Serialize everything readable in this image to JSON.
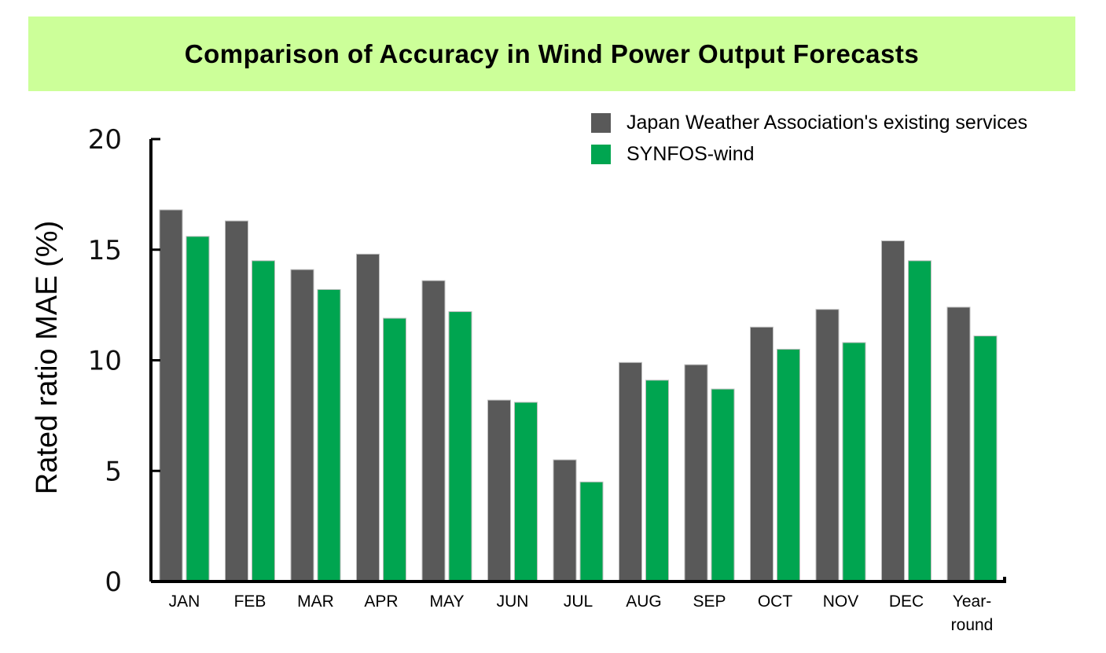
{
  "chart_data": {
    "type": "bar",
    "title": "Comparison of Accuracy in Wind Power Output Forecasts",
    "xlabel": "",
    "ylabel": "Rated ratio MAE (%)",
    "ylim": [
      0,
      20
    ],
    "yticks": [
      "0",
      "5",
      "10",
      "15",
      "20"
    ],
    "categories": [
      "JAN",
      "FEB",
      "MAR",
      "APR",
      "MAY",
      "JUN",
      "JUL",
      "AUG",
      "SEP",
      "OCT",
      "NOV",
      "DEC",
      "Year-round"
    ],
    "series": [
      {
        "name": "Japan Weather Association's existing services",
        "color": "#595959",
        "values": [
          16.8,
          16.3,
          14.1,
          14.8,
          13.6,
          8.2,
          5.5,
          9.9,
          9.8,
          11.5,
          12.3,
          15.4,
          12.4
        ]
      },
      {
        "name": "SYNFOS-wind",
        "color": "#00a550",
        "values": [
          15.6,
          14.5,
          13.2,
          11.9,
          12.2,
          8.1,
          4.5,
          9.1,
          8.7,
          10.5,
          10.8,
          14.5,
          11.1
        ]
      }
    ],
    "legend_position": "top-right",
    "background_colors": {
      "title_band": "#ccff99"
    }
  }
}
